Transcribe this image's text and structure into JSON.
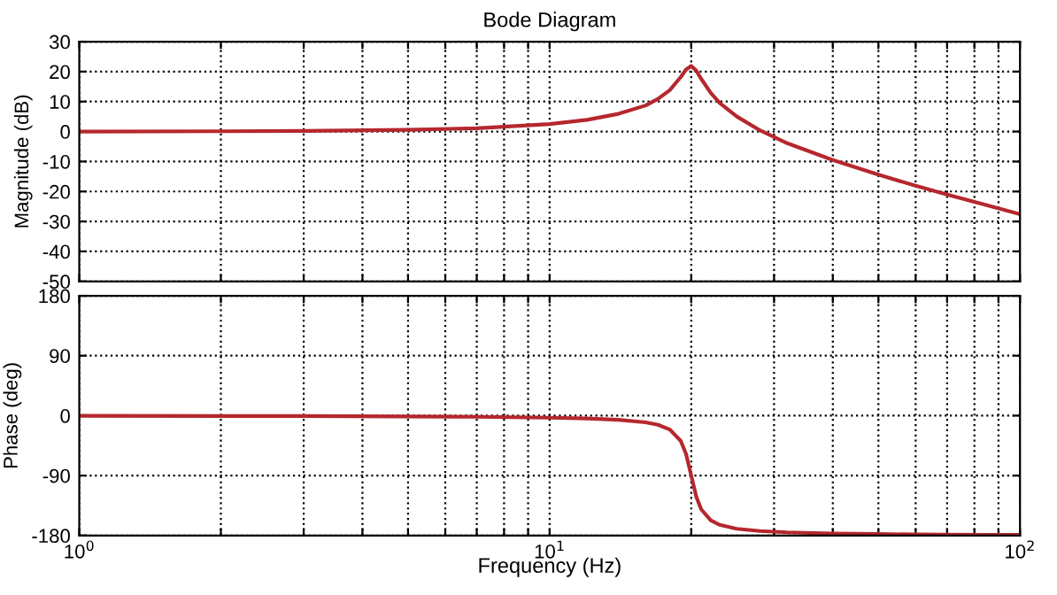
{
  "chart_data": [
    {
      "type": "line",
      "title": "Bode Diagram",
      "ylabel": "Magnitude (dB)",
      "log": "x",
      "grid": true,
      "tick_labels": "y",
      "x": [
        1,
        2,
        3,
        5,
        7,
        10,
        12,
        14,
        16,
        17,
        18,
        19,
        19.5,
        20,
        20.5,
        21,
        22,
        23,
        25,
        28,
        32,
        40,
        50,
        60,
        70,
        85,
        100
      ],
      "series": [
        {
          "color": "#b5282e",
          "values": [
            0,
            0.1,
            0.2,
            0.6,
            1.1,
            2.5,
            3.9,
            5.9,
            8.7,
            10.9,
            13.8,
            18.2,
            20.7,
            21.9,
            20.3,
            17.6,
            12.9,
            9.5,
            5.0,
            0.4,
            -3.9,
            -9.5,
            -14.4,
            -18.1,
            -21.0,
            -24.6,
            -27.6
          ]
        }
      ],
      "xlim": [
        1,
        100
      ],
      "xticks": [
        1,
        2,
        3,
        4,
        5,
        6,
        7,
        8,
        9,
        10,
        20,
        30,
        40,
        50,
        60,
        70,
        80,
        90,
        100
      ],
      "ylim": [
        -50,
        30
      ],
      "yticks": [
        -50,
        -40,
        -30,
        -20,
        -10,
        0,
        10,
        20,
        30
      ]
    },
    {
      "type": "line",
      "xlabel": "Frequency (Hz)",
      "ylabel": "Phase (deg)",
      "log": "x",
      "grid": true,
      "x": [
        1,
        2,
        3,
        5,
        7,
        10,
        12,
        14,
        16,
        17,
        18,
        19,
        19.5,
        20,
        20.5,
        21,
        22,
        23,
        25,
        28,
        32,
        40,
        50,
        60,
        70,
        85,
        100
      ],
      "series": [
        {
          "color": "#b5282e",
          "values": [
            -0.2,
            -0.5,
            -0.7,
            -1.2,
            -1.8,
            -3.1,
            -4.3,
            -6.3,
            -10.1,
            -13.8,
            -20.8,
            -37.9,
            -57.6,
            -90,
            -121.7,
            -140.7,
            -157.3,
            -164.1,
            -169.9,
            -173.3,
            -175.3,
            -177,
            -177.8,
            -178.5,
            -178.7,
            -179.1,
            -179.2
          ]
        }
      ],
      "xlim": [
        1,
        100
      ],
      "xticks": [
        {
          "value": 1,
          "label": "10$^{0}$"
        },
        {
          "value": 2,
          "label": null
        },
        {
          "value": 3,
          "label": null
        },
        {
          "value": 4,
          "label": null
        },
        {
          "value": 5,
          "label": null
        },
        {
          "value": 6,
          "label": null
        },
        {
          "value": 7,
          "label": null
        },
        {
          "value": 8,
          "label": null
        },
        {
          "value": 9,
          "label": null
        },
        {
          "value": 10,
          "label": "10$^{1}$"
        },
        {
          "value": 20,
          "label": null
        },
        {
          "value": 30,
          "label": null
        },
        {
          "value": 40,
          "label": null
        },
        {
          "value": 50,
          "label": null
        },
        {
          "value": 60,
          "label": null
        },
        {
          "value": 70,
          "label": null
        },
        {
          "value": 80,
          "label": null
        },
        {
          "value": 90,
          "label": null
        },
        {
          "value": 100,
          "label": "10$^{2}$"
        }
      ],
      "ylim": [
        -180,
        180
      ],
      "yticks": [
        -180,
        -90,
        0,
        90,
        180
      ]
    }
  ]
}
